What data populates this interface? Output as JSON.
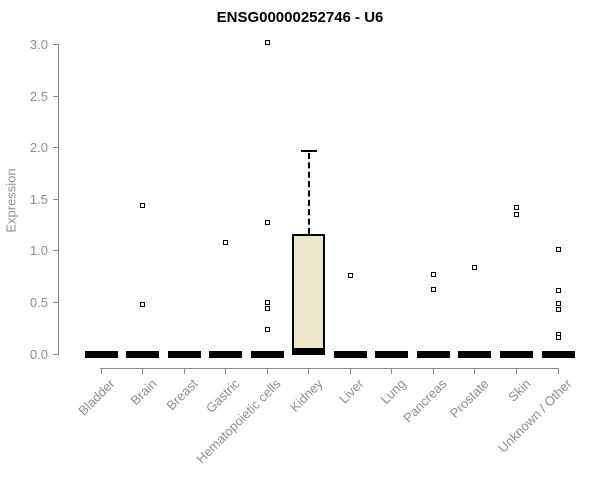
{
  "chart_data": {
    "type": "boxplot",
    "title": "ENSG00000252746 - U6",
    "ylabel": "Expression",
    "xlabel": "",
    "ylim": [
      0,
      3.05
    ],
    "grid": false,
    "legend": "none",
    "ytick_values": [
      0,
      0.5,
      1,
      1.5,
      2,
      2.5,
      3
    ],
    "ytick_labels": [
      "0.0",
      "0.5",
      "1.0",
      "1.5",
      "2.0",
      "2.5",
      "3.0"
    ],
    "categories": [
      "Bladder",
      "Brain",
      "Breast",
      "Gastric",
      "Hematopoietic cells",
      "Kidney",
      "Liver",
      "Lung",
      "Pancreas",
      "Prostate",
      "Skin",
      "Unknown / Other"
    ],
    "boxes": [
      {
        "category": "Bladder",
        "q1": 0,
        "median": 0,
        "q3": 0,
        "whisker_low": 0,
        "whisker_high": 0,
        "outliers": []
      },
      {
        "category": "Brain",
        "q1": 0,
        "median": 0,
        "q3": 0,
        "whisker_low": 0,
        "whisker_high": 0,
        "outliers": [
          1.44,
          0.48
        ]
      },
      {
        "category": "Breast",
        "q1": 0,
        "median": 0,
        "q3": 0,
        "whisker_low": 0,
        "whisker_high": 0,
        "outliers": []
      },
      {
        "category": "Gastric",
        "q1": 0,
        "median": 0,
        "q3": 0,
        "whisker_low": 0,
        "whisker_high": 0,
        "outliers": [
          1.08
        ]
      },
      {
        "category": "Hematopoietic cells",
        "q1": 0,
        "median": 0,
        "q3": 0,
        "whisker_low": 0,
        "whisker_high": 0,
        "outliers": [
          3.02,
          1.28,
          0.5,
          0.44,
          0.24
        ]
      },
      {
        "category": "Kidney",
        "q1": 0.02,
        "median": 0.02,
        "q3": 1.16,
        "whisker_low": 0,
        "whisker_high": 1.97,
        "outliers": []
      },
      {
        "category": "Liver",
        "q1": 0,
        "median": 0,
        "q3": 0,
        "whisker_low": 0,
        "whisker_high": 0,
        "outliers": [
          0.76
        ]
      },
      {
        "category": "Lung",
        "q1": 0,
        "median": 0,
        "q3": 0,
        "whisker_low": 0,
        "whisker_high": 0,
        "outliers": []
      },
      {
        "category": "Pancreas",
        "q1": 0,
        "median": 0,
        "q3": 0,
        "whisker_low": 0,
        "whisker_high": 0,
        "outliers": [
          0.77,
          0.63
        ]
      },
      {
        "category": "Prostate",
        "q1": 0,
        "median": 0,
        "q3": 0,
        "whisker_low": 0,
        "whisker_high": 0,
        "outliers": [
          0.84
        ]
      },
      {
        "category": "Skin",
        "q1": 0,
        "median": 0,
        "q3": 0,
        "whisker_low": 0,
        "whisker_high": 0,
        "outliers": [
          1.42,
          1.35
        ]
      },
      {
        "category": "Unknown / Other",
        "q1": 0,
        "median": 0,
        "q3": 0,
        "whisker_low": 0,
        "whisker_high": 0,
        "outliers": [
          1.01,
          0.62,
          0.49,
          0.43,
          0.19,
          0.16
        ]
      }
    ],
    "colors": {
      "box_fill": "#ece6cb",
      "box_border": "#000000",
      "median": "#000000",
      "whisker": "#000000",
      "outlier": "#000000",
      "axis": "#898989",
      "tick_text": "#8e8e8e",
      "title": "#000000"
    }
  }
}
